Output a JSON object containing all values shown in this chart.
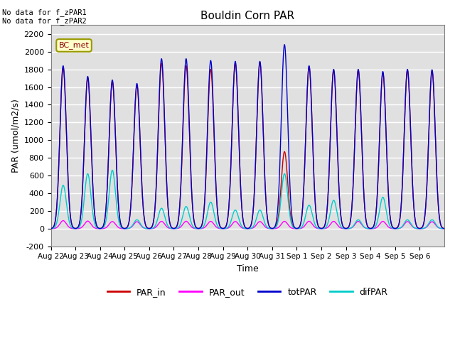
{
  "title": "Bouldin Corn PAR",
  "ylabel": "PAR (umol/m2/s)",
  "xlabel": "Time",
  "nodata_text": "No data for f_zPAR1\nNo data for f_zPAR2",
  "legend_label_text": "BC_met",
  "ylim": [
    -200,
    2300
  ],
  "bg_color": "#e0e0e0",
  "grid_color": "white",
  "line_colors": {
    "PAR_in": "#cc0000",
    "PAR_out": "#ff00ff",
    "totPAR": "#0000cc",
    "difPAR": "#00cccc"
  },
  "day_peaks": [
    {
      "totPAR": 1840,
      "PAR_in": 1820,
      "PAR_out": 90,
      "difPAR": 490
    },
    {
      "totPAR": 1720,
      "PAR_in": 1700,
      "PAR_out": 85,
      "difPAR": 620
    },
    {
      "totPAR": 1680,
      "PAR_in": 1660,
      "PAR_out": 80,
      "difPAR": 660
    },
    {
      "totPAR": 1640,
      "PAR_in": 1620,
      "PAR_out": 78,
      "difPAR": 100
    },
    {
      "totPAR": 1920,
      "PAR_in": 1870,
      "PAR_out": 82,
      "difPAR": 230
    },
    {
      "totPAR": 1920,
      "PAR_in": 1840,
      "PAR_out": 83,
      "difPAR": 250
    },
    {
      "totPAR": 1900,
      "PAR_in": 1800,
      "PAR_out": 82,
      "difPAR": 300
    },
    {
      "totPAR": 1890,
      "PAR_in": 1870,
      "PAR_out": 81,
      "difPAR": 210
    },
    {
      "totPAR": 1890,
      "PAR_in": 1880,
      "PAR_out": 80,
      "difPAR": 210
    },
    {
      "totPAR": 2080,
      "PAR_in": 870,
      "PAR_out": 82,
      "difPAR": 620
    },
    {
      "totPAR": 1840,
      "PAR_in": 1830,
      "PAR_out": 83,
      "difPAR": 265
    },
    {
      "totPAR": 1800,
      "PAR_in": 1790,
      "PAR_out": 82,
      "difPAR": 320
    },
    {
      "totPAR": 1800,
      "PAR_in": 1790,
      "PAR_out": 82,
      "difPAR": 100
    },
    {
      "totPAR": 1775,
      "PAR_in": 1760,
      "PAR_out": 82,
      "difPAR": 355
    },
    {
      "totPAR": 1800,
      "PAR_in": 1790,
      "PAR_out": 80,
      "difPAR": 100
    },
    {
      "totPAR": 1795,
      "PAR_in": 1780,
      "PAR_out": 78,
      "difPAR": 100
    }
  ],
  "xtick_labels": [
    "Aug 22",
    "Aug 23",
    "Aug 24",
    "Aug 25",
    "Aug 26",
    "Aug 27",
    "Aug 28",
    "Aug 29",
    "Aug 30",
    "Aug 31",
    "Sep 1",
    "Sep 2",
    "Sep 3",
    "Sep 4",
    "Sep 5",
    "Sep 6"
  ],
  "yticks": [
    -200,
    0,
    200,
    400,
    600,
    800,
    1000,
    1200,
    1400,
    1600,
    1800,
    2000,
    2200
  ]
}
